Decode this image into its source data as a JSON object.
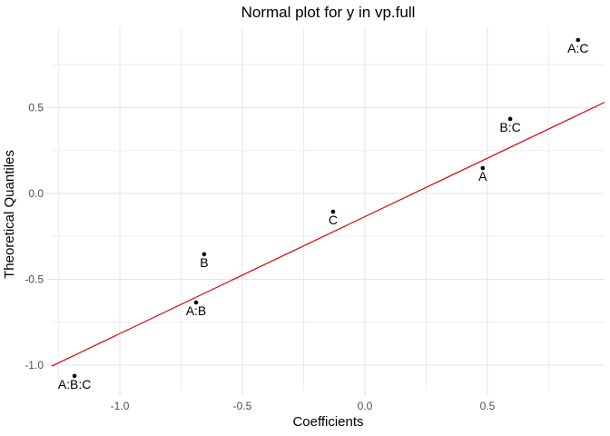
{
  "chart_data": {
    "type": "scatter",
    "title": "Normal plot for y in vp.full",
    "xlabel": "Coefficients",
    "ylabel": "Theoretical Quantiles",
    "xlim": [
      -1.278,
      0.978
    ],
    "ylim": [
      -1.148,
      0.968
    ],
    "grid": true,
    "legend": false,
    "x_major_ticks": [
      {
        "value": -1.0,
        "label": "-1.0"
      },
      {
        "value": -0.5,
        "label": "-0.5"
      },
      {
        "value": 0.0,
        "label": "0.0"
      },
      {
        "value": 0.5,
        "label": "0.5"
      }
    ],
    "x_minor_ticks": [
      -1.25,
      -0.75,
      -0.25,
      0.25,
      0.75
    ],
    "y_major_ticks": [
      {
        "value": 0.5,
        "label": "0.5"
      },
      {
        "value": 0.0,
        "label": "0.0"
      },
      {
        "value": -0.5,
        "label": "-0.5"
      },
      {
        "value": -1.0,
        "label": "-1.0"
      }
    ],
    "y_minor_ticks": [
      0.75,
      0.25,
      -0.25,
      -0.75
    ],
    "points": [
      {
        "label": "A:B:C",
        "x": -1.185,
        "y": -1.063
      },
      {
        "label": "A:B",
        "x": -0.689,
        "y": -0.635
      },
      {
        "label": "B",
        "x": -0.656,
        "y": -0.354
      },
      {
        "label": "C",
        "x": -0.13,
        "y": -0.106
      },
      {
        "label": "A",
        "x": 0.481,
        "y": 0.148
      },
      {
        "label": "B:C",
        "x": 0.593,
        "y": 0.434
      },
      {
        "label": "A:C",
        "x": 0.87,
        "y": 0.894
      }
    ],
    "reference_line": {
      "slope": 0.681,
      "intercept": -0.135
    },
    "colors": {
      "background": "#FFFFFF",
      "major_grid": "#E4E4E4",
      "minor_grid": "#EDEDED",
      "tick_mark": "#D9D9D9",
      "tick_label": "#4D4D4D",
      "title_text": "#000000",
      "point": "#000000",
      "point_label": "#000000",
      "reference_line": "#E10000"
    }
  }
}
